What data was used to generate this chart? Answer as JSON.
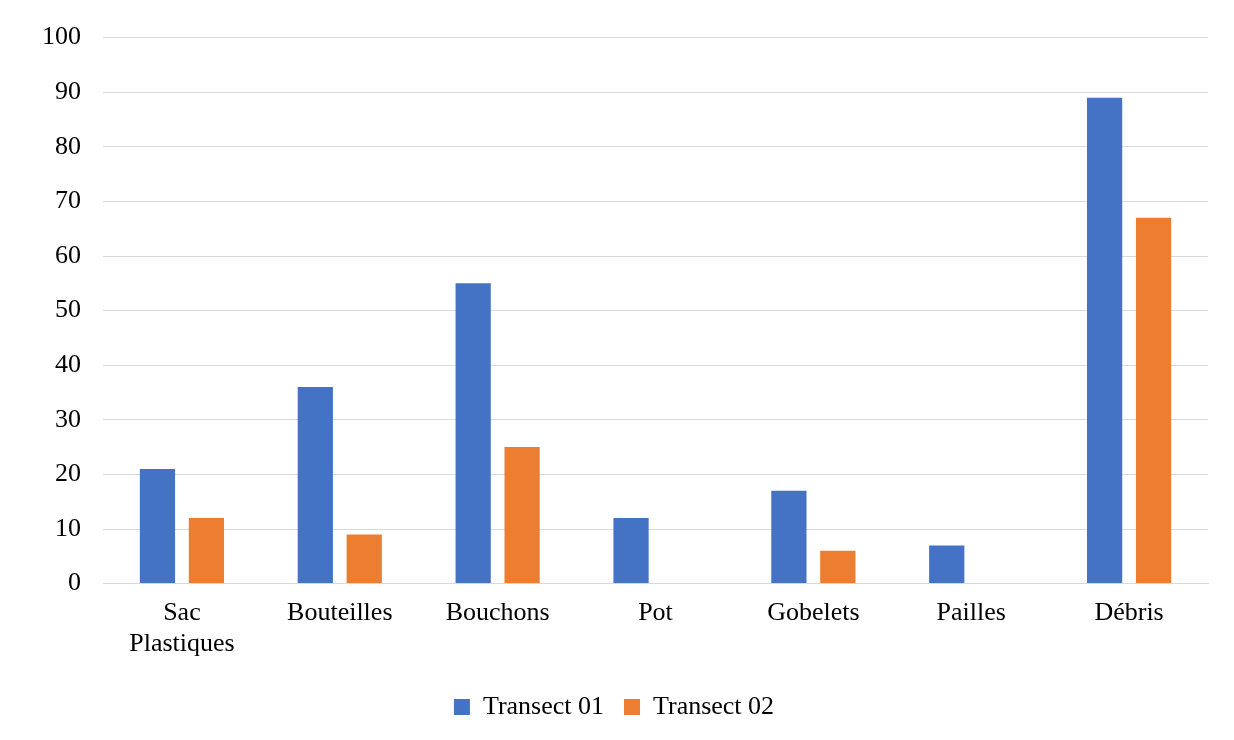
{
  "chart_data": {
    "type": "bar",
    "categories": [
      "Sac Plastiques",
      "Bouteilles",
      "Bouchons",
      "Pot",
      "Gobelets",
      "Pailles",
      "Débris"
    ],
    "series": [
      {
        "name": "Transect 01",
        "color": "#4472c4",
        "values": [
          21,
          36,
          55,
          12,
          17,
          7,
          89
        ]
      },
      {
        "name": "Transect 02",
        "color": "#ed7d31",
        "values": [
          12,
          9,
          25,
          0,
          6,
          0,
          67
        ]
      }
    ],
    "ylim": [
      0,
      100
    ],
    "yticks": [
      0,
      10,
      20,
      30,
      40,
      50,
      60,
      70,
      80,
      90,
      100
    ],
    "grid": "y",
    "legend": "bottom"
  }
}
